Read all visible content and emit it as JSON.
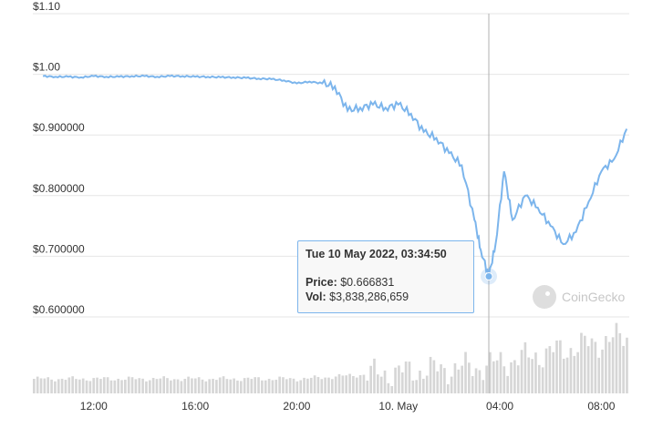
{
  "chart_data": {
    "type": "line",
    "y_ticks": [
      "$1.10",
      "$1.00",
      "$0.900000",
      "$0.800000",
      "$0.700000",
      "$0.600000"
    ],
    "y_tick_values": [
      1.1,
      1.0,
      0.9,
      0.8,
      0.7,
      0.6
    ],
    "ylim": [
      0.6,
      1.1
    ],
    "x_ticks": [
      "12:00",
      "16:00",
      "20:00",
      "10. May",
      "04:00",
      "08:00"
    ],
    "grid": true,
    "series": [
      {
        "type": "line",
        "color": "#7cb5ec",
        "x": [
          "09 May 10:00",
          "09 May 10:30",
          "09 May 11:00",
          "09 May 11:30",
          "09 May 12:00",
          "09 May 12:30",
          "09 May 13:00",
          "09 May 13:30",
          "09 May 14:00",
          "09 May 14:30",
          "09 May 15:00",
          "09 May 15:30",
          "09 May 16:00",
          "09 May 16:30",
          "09 May 17:00",
          "09 May 17:30",
          "09 May 18:00",
          "09 May 18:30",
          "09 May 19:00",
          "09 May 19:30",
          "09 May 20:00",
          "09 May 20:30",
          "09 May 21:00",
          "09 May 21:30",
          "09 May 22:00",
          "09 May 22:30",
          "09 May 23:00",
          "09 May 23:30",
          "10 May 00:00",
          "10 May 00:30",
          "10 May 01:00",
          "10 May 01:30",
          "10 May 02:00",
          "10 May 02:30",
          "10 May 03:00",
          "10 May 03:15",
          "10 May 03:34",
          "10 May 03:50",
          "10 May 04:10",
          "10 May 04:30",
          "10 May 05:00",
          "10 May 05:30",
          "10 May 06:00",
          "10 May 06:30",
          "10 May 07:00",
          "10 May 07:30",
          "10 May 08:00",
          "10 May 08:30",
          "10 May 09:00"
        ],
        "y": [
          0.997,
          0.996,
          0.996,
          0.995,
          0.997,
          0.996,
          0.996,
          0.997,
          0.997,
          0.996,
          0.997,
          0.997,
          0.996,
          0.996,
          0.995,
          0.995,
          0.994,
          0.993,
          0.992,
          0.99,
          0.985,
          0.988,
          0.985,
          0.98,
          0.94,
          0.945,
          0.95,
          0.945,
          0.95,
          0.935,
          0.905,
          0.895,
          0.87,
          0.85,
          0.76,
          0.71,
          0.666831,
          0.72,
          0.84,
          0.76,
          0.8,
          0.78,
          0.75,
          0.72,
          0.74,
          0.79,
          0.84,
          0.86,
          0.91
        ]
      }
    ],
    "volume_bars": "gray volume bars along the bottom of the plot, rising toward the right"
  },
  "tooltip": {
    "title": "Tue 10 May 2022, 03:34:50",
    "price_label": "Price:",
    "price_value": "$0.666831",
    "vol_label": "Vol:",
    "vol_value": "$3,838,286,659"
  },
  "watermark": {
    "text": "CoinGecko"
  },
  "colors": {
    "line": "#7cb5ec",
    "volume": "#d6d6d6",
    "crosshair": "#b0b0b0"
  }
}
